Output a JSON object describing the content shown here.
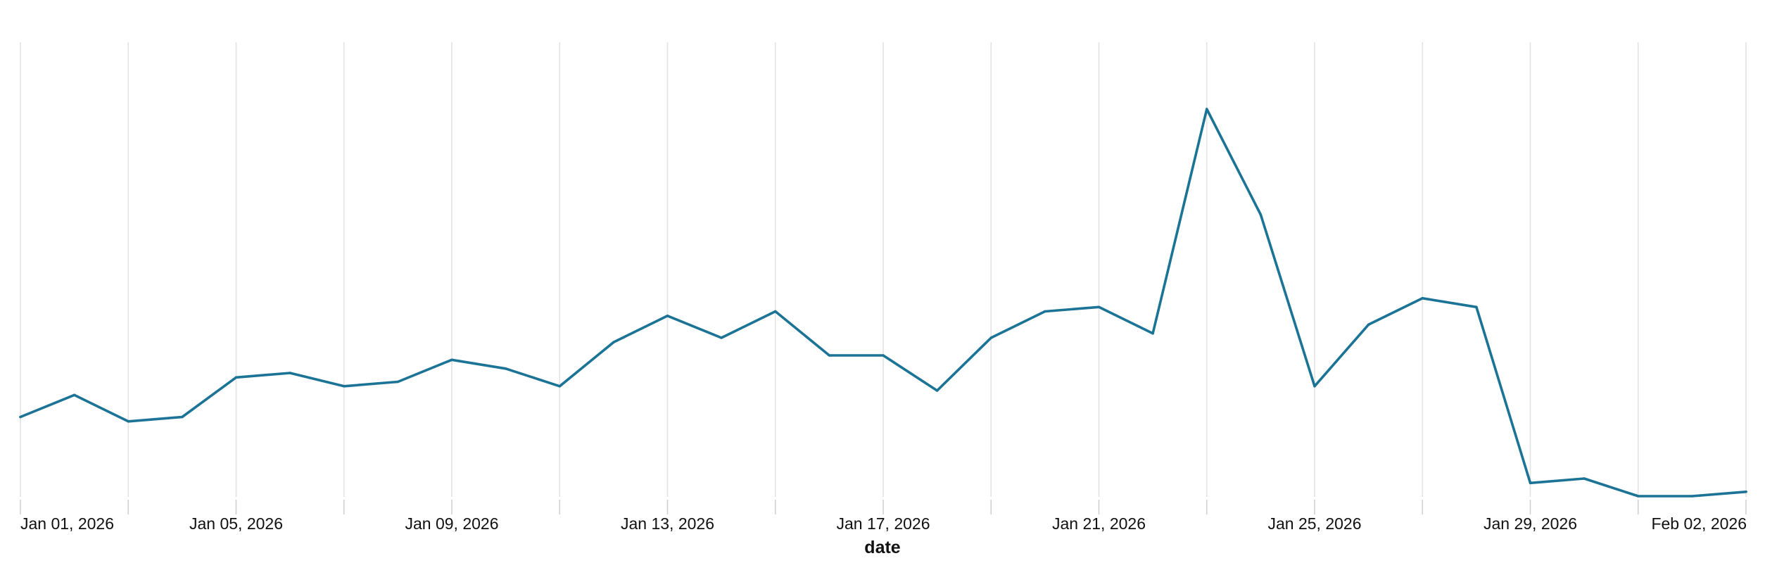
{
  "chart_data": {
    "type": "line",
    "xlabel": "date",
    "ylabel": "",
    "title": "",
    "grid": {
      "vertical": true,
      "horizontal": false
    },
    "line_color": "#1b7396",
    "ylim": [
      0,
      100
    ],
    "x": [
      "2026-01-01",
      "2026-01-02",
      "2026-01-03",
      "2026-01-04",
      "2026-01-05",
      "2026-01-06",
      "2026-01-07",
      "2026-01-08",
      "2026-01-09",
      "2026-01-10",
      "2026-01-11",
      "2026-01-12",
      "2026-01-13",
      "2026-01-14",
      "2026-01-15",
      "2026-01-16",
      "2026-01-17",
      "2026-01-18",
      "2026-01-19",
      "2026-01-20",
      "2026-01-21",
      "2026-01-22",
      "2026-01-23",
      "2026-01-24",
      "2026-01-25",
      "2026-01-26",
      "2026-01-27",
      "2026-01-28",
      "2026-01-29",
      "2026-01-30",
      "2026-01-31",
      "2026-02-01",
      "2026-02-02"
    ],
    "series": [
      {
        "values": [
          18,
          23,
          17,
          18,
          27,
          28,
          25,
          26,
          31,
          29,
          25,
          35,
          41,
          36,
          42,
          32,
          32,
          24,
          36,
          42,
          43,
          37,
          88,
          64,
          25,
          39,
          45,
          43,
          3,
          4,
          0,
          0,
          1
        ]
      }
    ],
    "tick_labels": [
      "Jan 01, 2026",
      "Jan 05, 2026",
      "Jan 09, 2026",
      "Jan 13, 2026",
      "Jan 17, 2026",
      "Jan 21, 2026",
      "Jan 25, 2026",
      "Jan 29, 2026",
      "Feb 02, 2026"
    ],
    "tick_label_every": 4,
    "grid_every": 2
  }
}
